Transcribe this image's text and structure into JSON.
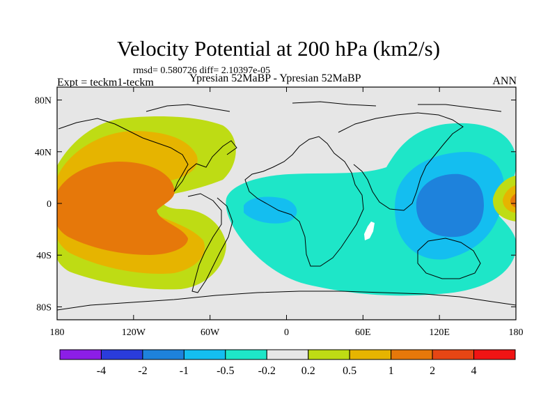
{
  "chart_data": {
    "type": "heatmap",
    "title": "Velocity Potential at 200 hPa (km2/s)",
    "stats": "rmsd= 0.580726 diff= 2.10397e-05",
    "left_label": "Expt = teckm1-teckm",
    "center_label": "Ypresian  52MaBP - Ypresian  52MaBP",
    "right_label": "ANN",
    "x_ticks": [
      "180",
      "120W",
      "60W",
      "0",
      "60E",
      "120E",
      "180"
    ],
    "x_tick_values": [
      -180,
      -120,
      -60,
      0,
      60,
      120,
      180
    ],
    "y_ticks": [
      "80N",
      "40N",
      "0",
      "40S",
      "80S"
    ],
    "y_tick_values": [
      80,
      40,
      0,
      -40,
      -80
    ],
    "xlim": [
      -180,
      180
    ],
    "ylim": [
      -90,
      90
    ],
    "colorbar_labels": [
      "-4",
      "-2",
      "-1",
      "-0.5",
      "-0.2",
      "0.2",
      "0.5",
      "1",
      "2",
      "4"
    ],
    "colorbar_levels": [
      -4,
      -2,
      -1,
      -0.5,
      -0.2,
      0.2,
      0.5,
      1,
      2,
      4
    ],
    "colorbar_colors": [
      "#8c1ee6",
      "#2a3cdc",
      "#1e82dc",
      "#14bef0",
      "#1ee6c8",
      "#e6e6e6",
      "#bedc14",
      "#e6b400",
      "#e6780a",
      "#e64614",
      "#f01414"
    ],
    "field_bands": [
      {
        "name": "positive-pacific",
        "range": "0.2 to 0.5",
        "color": "#bedc14"
      },
      {
        "name": "positive-pacific",
        "range": "0.5 to 1",
        "color": "#e6b400"
      },
      {
        "name": "positive-pacific",
        "range": "1 to 2",
        "color": "#e6780a"
      },
      {
        "name": "negative-africa-indian",
        "range": "-0.5 to -0.2",
        "color": "#1ee6c8"
      },
      {
        "name": "negative-africa-indian",
        "range": "-1 to -0.5",
        "color": "#14bef0"
      },
      {
        "name": "negative-west-pacific",
        "range": "-2 to -1",
        "color": "#1e82dc"
      },
      {
        "name": "positive-dateline",
        "range": "0.5 to 1",
        "color": "#e6b400"
      },
      {
        "name": "positive-dateline",
        "range": "1 to 2",
        "color": "#e6780a"
      }
    ]
  }
}
